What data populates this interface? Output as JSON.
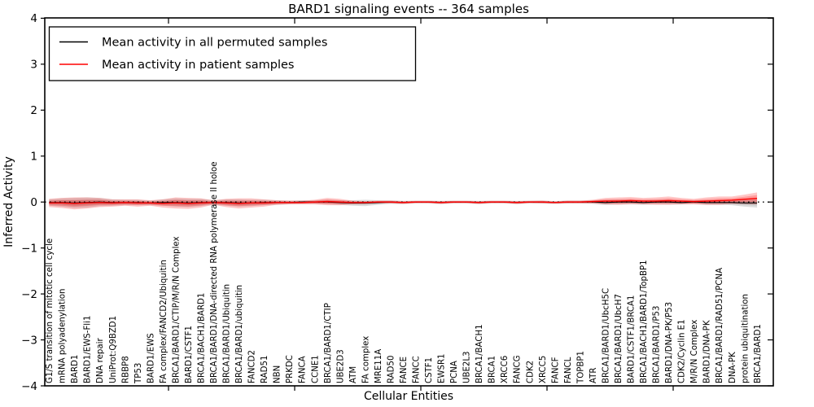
{
  "title": "BARD1 signaling events -- 364 samples",
  "legend": {
    "items": [
      {
        "label": "Mean activity in all permuted samples",
        "color": "#000000"
      },
      {
        "label": "Mean activity in patient samples",
        "color": "#ff0000"
      }
    ]
  },
  "chart_data": {
    "type": "line",
    "title": "BARD1 signaling events -- 364 samples",
    "xlabel": "Cellular Entities",
    "ylabel": "Inferred Activity",
    "ylim": [
      -4,
      4
    ],
    "grid": false,
    "legend_position": "upper left",
    "reference_line": {
      "y": 0,
      "style": "dotted",
      "color": "#000000"
    },
    "yticks": [
      {
        "value": 4,
        "label": "4"
      },
      {
        "value": 3,
        "label": "3"
      },
      {
        "value": 2,
        "label": "2"
      },
      {
        "value": 1,
        "label": "1"
      },
      {
        "value": 0,
        "label": "0"
      },
      {
        "value": -1,
        "label": "−1"
      },
      {
        "value": -2,
        "label": "−2"
      },
      {
        "value": -3,
        "label": "−3"
      },
      {
        "value": -4,
        "label": "−4"
      }
    ],
    "categories": [
      "G1/S transition of mitotic cell cycle",
      "mRNA polyadenylation",
      "BARD1",
      "BARD1/EWS-Fli1",
      "DNA repair",
      "UniProt:Q9BZD1",
      "RBBP8",
      "TP53",
      "BARD1/EWS",
      "FA complex/FANCD2/Ubiquitin",
      "BRCA1/BARD1/CTIP/M/R/N Complex",
      "BARD1/CSTF1",
      "BRCA1/BACH1/BARD1",
      "BRCA1/BARD1/DNA-directed RNA polymerase II holoe",
      "BRCA1/BARD1/Ubiquitin",
      "BRCA1/BARD1/ubiquitin",
      "FANCD2",
      "RAD51",
      "NBN",
      "PRKDC",
      "FANCA",
      "CCNE1",
      "BRCA1/BARD1/CTIP",
      "UBE2D3",
      "ATM",
      "FA complex",
      "MRE11A",
      "RAD50",
      "FANCE",
      "FANCC",
      "CSTF1",
      "EWSR1",
      "PCNA",
      "UBE2L3",
      "BRCA1/BACH1",
      "BRCA1",
      "XRCC6",
      "FANCG",
      "CDK2",
      "XRCC5",
      "FANCF",
      "FANCL",
      "TOPBP1",
      "ATR",
      "BRCA1/BARD1/UbcH5C",
      "BRCA1/BARD1/UbcH7",
      "BARD1/CSTF1/BRCA1",
      "BRCA1/BACH1/BARD1/TopBP1",
      "BRCA1/BARD1/P53",
      "BARD1/DNA-PK/P53",
      "CDK2/Cyclin E1",
      "M/R/N Complex",
      "BARD1/DNA-PK",
      "BRCA1/BARD1/RAD51/PCNA",
      "DNA-PK",
      "protein ubiquitination",
      "BRCA1/BARD1"
    ],
    "series": [
      {
        "name": "Mean activity in all permuted samples",
        "color": "#000000",
        "band_color": "rgba(0,0,0,0.13)",
        "values": [
          -0.01,
          -0.01,
          -0.02,
          -0.01,
          0,
          -0.01,
          -0.01,
          -0.01,
          -0.02,
          -0.01,
          -0.01,
          -0.02,
          -0.01,
          -0.01,
          -0.01,
          -0.02,
          -0.02,
          -0.01,
          -0.01,
          -0.01,
          0,
          0,
          0,
          -0.01,
          -0.02,
          -0.02,
          -0.01,
          0,
          -0.01,
          0,
          0,
          -0.01,
          0,
          0,
          -0.01,
          0,
          0,
          -0.01,
          0,
          0,
          -0.01,
          0,
          0,
          0,
          -0.01,
          0,
          0,
          -0.01,
          0,
          0,
          -0.01,
          0,
          -0.01,
          -0.01,
          -0.01,
          -0.02,
          -0.02
        ],
        "band_halfwidth": [
          0.07,
          0.09,
          0.11,
          0.11,
          0.09,
          0.07,
          0.06,
          0.06,
          0.05,
          0.07,
          0.09,
          0.09,
          0.08,
          0.05,
          0.07,
          0.08,
          0.07,
          0.06,
          0.05,
          0.04,
          0.04,
          0.04,
          0.05,
          0.05,
          0.06,
          0.07,
          0.05,
          0.04,
          0.035,
          0.03,
          0.03,
          0.035,
          0.03,
          0.03,
          0.035,
          0.03,
          0.03,
          0.035,
          0.03,
          0.035,
          0.03,
          0.035,
          0.035,
          0.04,
          0.055,
          0.05,
          0.045,
          0.05,
          0.045,
          0.05,
          0.045,
          0.04,
          0.05,
          0.05,
          0.06,
          0.08,
          0.1
        ]
      },
      {
        "name": "Mean activity in patient samples",
        "color": "#ff0000",
        "band_color": "rgba(255,0,0,0.22)",
        "values": [
          -0.02,
          -0.02,
          -0.03,
          -0.02,
          -0.01,
          -0.02,
          -0.01,
          -0.02,
          -0.02,
          -0.03,
          -0.02,
          -0.03,
          -0.02,
          -0.01,
          -0.02,
          -0.03,
          -0.02,
          -0.02,
          -0.01,
          -0.01,
          -0.01,
          0,
          0.01,
          0,
          -0.01,
          -0.01,
          0,
          0,
          -0.01,
          0,
          0,
          -0.01,
          0,
          0,
          -0.01,
          0,
          0,
          -0.01,
          0,
          0,
          -0.01,
          0,
          0,
          0.01,
          0.02,
          0.02,
          0.03,
          0.02,
          0.02,
          0.03,
          0.02,
          0.01,
          0.02,
          0.03,
          0.04,
          0.06,
          0.08
        ],
        "band_halfwidth": [
          0.09,
          0.11,
          0.13,
          0.12,
          0.1,
          0.08,
          0.07,
          0.08,
          0.06,
          0.09,
          0.12,
          0.12,
          0.1,
          0.05,
          0.09,
          0.11,
          0.1,
          0.08,
          0.05,
          0.04,
          0.04,
          0.05,
          0.08,
          0.07,
          0.04,
          0.03,
          0.03,
          0.03,
          0.03,
          0.025,
          0.025,
          0.03,
          0.025,
          0.025,
          0.03,
          0.025,
          0.025,
          0.03,
          0.025,
          0.03,
          0.025,
          0.03,
          0.03,
          0.04,
          0.07,
          0.08,
          0.08,
          0.07,
          0.08,
          0.09,
          0.07,
          0.06,
          0.08,
          0.09,
          0.08,
          0.1,
          0.13
        ]
      }
    ]
  }
}
